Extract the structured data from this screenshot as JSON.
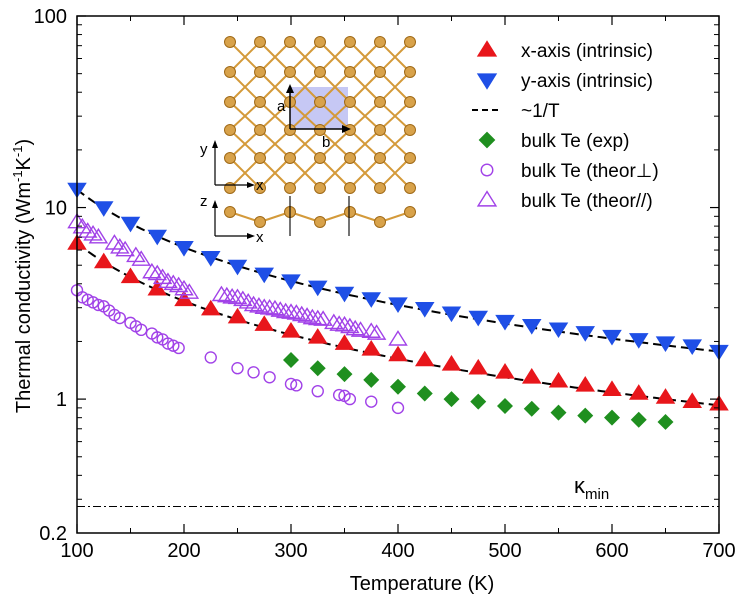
{
  "chart_data": {
    "type": "scatter",
    "title": "",
    "xlabel": "Temperature (K)",
    "ylabel": {
      "main": "Thermal conductivity (Wm",
      "e1": "-1",
      "mid": "K",
      "e2": "-1",
      "end": ")"
    },
    "xlim": [
      100,
      700
    ],
    "ylim": [
      0.2,
      100
    ],
    "yscale": "log",
    "xticks": [
      100,
      200,
      300,
      400,
      500,
      600,
      700
    ],
    "yticks": [
      {
        "value": 0.2,
        "label": "0.2"
      },
      {
        "value": 1,
        "label": "1"
      },
      {
        "value": 10,
        "label": "10"
      },
      {
        "value": 100,
        "label": "100"
      }
    ],
    "kmin": {
      "value": 0.275,
      "label_main": "κ",
      "label_sub": "min"
    },
    "legend_position": "top-right",
    "series": [
      {
        "name": "x-axis (intrinsic)",
        "marker": "triangle-up",
        "filled": true,
        "color": "#e8161b",
        "x": [
          100,
          125,
          150,
          175,
          200,
          225,
          250,
          275,
          300,
          325,
          350,
          375,
          400,
          425,
          450,
          475,
          500,
          525,
          550,
          575,
          600,
          625,
          650,
          675,
          700
        ],
        "y": [
          6.5,
          5.2,
          4.35,
          3.75,
          3.3,
          2.95,
          2.68,
          2.45,
          2.26,
          2.1,
          1.95,
          1.82,
          1.7,
          1.6,
          1.52,
          1.45,
          1.38,
          1.3,
          1.24,
          1.18,
          1.12,
          1.07,
          1.02,
          0.97,
          0.94
        ]
      },
      {
        "name": "y-axis (intrinsic)",
        "marker": "triangle-down",
        "filled": true,
        "color": "#1f4fe6",
        "x": [
          100,
          125,
          150,
          175,
          200,
          225,
          250,
          275,
          300,
          325,
          350,
          375,
          400,
          425,
          450,
          475,
          500,
          525,
          550,
          575,
          600,
          625,
          650,
          675,
          700
        ],
        "y": [
          12.5,
          10.0,
          8.3,
          7.1,
          6.2,
          5.5,
          4.95,
          4.5,
          4.15,
          3.85,
          3.58,
          3.35,
          3.15,
          2.98,
          2.82,
          2.68,
          2.55,
          2.43,
          2.33,
          2.23,
          2.13,
          2.05,
          1.97,
          1.9,
          1.78
        ]
      },
      {
        "name": "~1/T",
        "marker": "dashed-line",
        "filled": false,
        "color": "#000000",
        "fits": [
          {
            "x": [
              100,
              700
            ],
            "y": [
              6.5,
              0.95
            ]
          },
          {
            "x": [
              100,
              700
            ],
            "y": [
              12.4,
              1.78
            ]
          }
        ]
      },
      {
        "name": "bulk Te (exp)",
        "marker": "diamond",
        "filled": true,
        "color": "#1f8f1f",
        "x": [
          300,
          325,
          350,
          375,
          400,
          425,
          450,
          475,
          500,
          525,
          550,
          575,
          600,
          625,
          650
        ],
        "y": [
          1.6,
          1.45,
          1.35,
          1.26,
          1.16,
          1.07,
          1.0,
          0.97,
          0.92,
          0.89,
          0.85,
          0.82,
          0.8,
          0.78,
          0.76
        ]
      },
      {
        "name": "bulk Te (theor⊥)",
        "marker": "circle",
        "filled": false,
        "color": "#a142e8",
        "x": [
          100,
          105,
          110,
          115,
          120,
          125,
          130,
          135,
          140,
          150,
          155,
          160,
          170,
          175,
          180,
          185,
          190,
          195,
          225,
          250,
          265,
          280,
          300,
          305,
          325,
          345,
          350,
          355,
          375,
          400
        ],
        "y": [
          3.7,
          3.4,
          3.3,
          3.2,
          3.1,
          3.05,
          2.9,
          2.75,
          2.65,
          2.5,
          2.4,
          2.3,
          2.2,
          2.1,
          2.05,
          1.95,
          1.9,
          1.85,
          1.65,
          1.45,
          1.38,
          1.3,
          1.2,
          1.18,
          1.1,
          1.05,
          1.04,
          1.0,
          0.97,
          0.9
        ]
      },
      {
        "name": "bulk Te (theor//)",
        "marker": "triangle-up",
        "filled": false,
        "color": "#a142e8",
        "x": [
          100,
          105,
          110,
          115,
          120,
          135,
          140,
          145,
          155,
          160,
          170,
          175,
          180,
          185,
          190,
          195,
          200,
          205,
          235,
          240,
          245,
          250,
          255,
          260,
          265,
          270,
          275,
          280,
          285,
          290,
          295,
          300,
          305,
          310,
          315,
          320,
          325,
          330,
          340,
          345,
          350,
          355,
          360,
          365,
          375,
          380,
          400
        ],
        "y": [
          8.4,
          7.9,
          7.5,
          7.25,
          7.0,
          6.5,
          6.2,
          6.0,
          5.6,
          5.35,
          4.6,
          4.5,
          4.3,
          4.1,
          4.0,
          3.9,
          3.75,
          3.6,
          3.5,
          3.45,
          3.4,
          3.38,
          3.3,
          3.2,
          3.1,
          3.05,
          3.0,
          2.98,
          2.95,
          2.9,
          2.85,
          2.83,
          2.8,
          2.75,
          2.7,
          2.65,
          2.62,
          2.6,
          2.5,
          2.45,
          2.43,
          2.38,
          2.32,
          2.28,
          2.25,
          2.2,
          2.05
        ]
      }
    ],
    "inset": {
      "top_axes": {
        "y": "y",
        "x": "x"
      },
      "side_axes": {
        "z": "z",
        "x": "x"
      },
      "cell_a": "a",
      "cell_b": "b"
    }
  }
}
